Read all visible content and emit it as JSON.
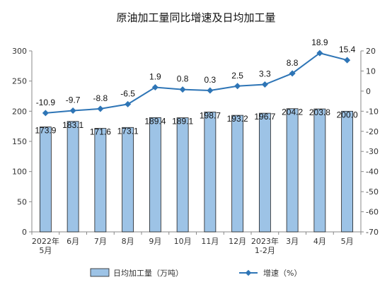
{
  "chart_data": {
    "type": "bar",
    "title": "原油加工量同比增速及日均加工量",
    "categories": [
      [
        "2022年",
        "5月"
      ],
      [
        "6月"
      ],
      [
        "7月"
      ],
      [
        "8月"
      ],
      [
        "9月"
      ],
      [
        "10月"
      ],
      [
        "11月"
      ],
      [
        "12月"
      ],
      [
        "2023年",
        "1-2月"
      ],
      [
        "3月"
      ],
      [
        "4月"
      ],
      [
        "5月"
      ]
    ],
    "left_axis": {
      "ticks": [
        "0",
        "50",
        "100",
        "150",
        "200",
        "250",
        "300"
      ],
      "ylim": [
        0,
        300
      ]
    },
    "right_axis": {
      "ticks": [
        "20",
        "10",
        "0",
        "-10",
        "-20",
        "-30",
        "-40",
        "-50",
        "-60",
        "-70"
      ],
      "ylim": [
        -70,
        20
      ]
    },
    "series": [
      {
        "name": "日均加工量（万吨）",
        "type": "bar",
        "axis": "left",
        "color": "#9DC3E6",
        "values": [
          173.9,
          183.1,
          171.6,
          173.1,
          189.4,
          189.1,
          198.7,
          193.2,
          196.7,
          204.2,
          203.8,
          200.0
        ],
        "labels": [
          "173.9",
          "183.1",
          "171.6",
          "173.1",
          "189.4",
          "189.1",
          "198.7",
          "193.2",
          "196.7",
          "204.2",
          "203.8",
          "200.0"
        ]
      },
      {
        "name": "增速（%）",
        "type": "line",
        "axis": "right",
        "color": "#2E75B6",
        "values": [
          -10.9,
          -9.7,
          -8.8,
          -6.5,
          1.9,
          0.8,
          0.3,
          2.5,
          3.3,
          8.8,
          18.9,
          15.4
        ],
        "labels": [
          "-10.9",
          "-9.7",
          "-8.8",
          "-6.5",
          "1.9",
          "0.8",
          "0.3",
          "2.5",
          "3.3",
          "8.8",
          "18.9",
          "15.4"
        ]
      }
    ],
    "legend_position": "bottom",
    "grid": false
  }
}
